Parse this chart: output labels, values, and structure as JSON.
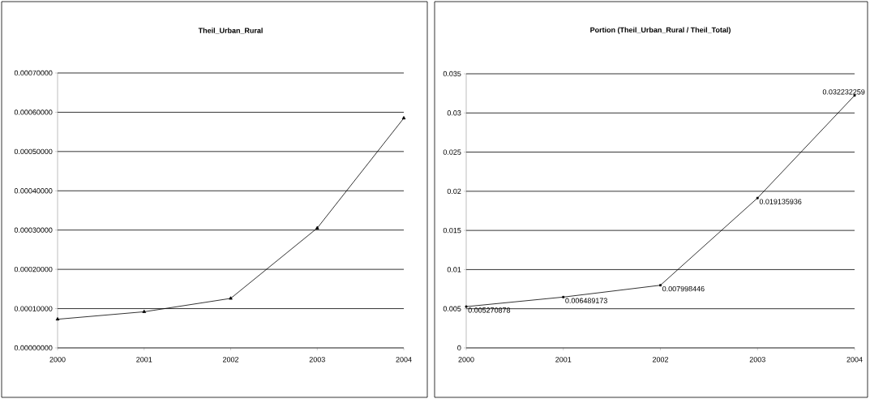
{
  "chart_data": [
    {
      "type": "line",
      "title": "Theil_Urban_Rural",
      "categories": [
        "2000",
        "2001",
        "2002",
        "2003",
        "2004"
      ],
      "values": [
        7.3e-05,
        9.2e-05,
        0.000126,
        0.000305,
        0.000585
      ],
      "color": "#000000",
      "marker": "triangle",
      "grid": "y",
      "ylim": [
        0,
        0.0007
      ],
      "yticks": [
        {
          "value": 0,
          "label": "0.00000000"
        },
        {
          "value": 0.0001,
          "label": "0.00010000"
        },
        {
          "value": 0.0002,
          "label": "0.00020000"
        },
        {
          "value": 0.0003,
          "label": "0.00030000"
        },
        {
          "value": 0.0004,
          "label": "0.00040000"
        },
        {
          "value": 0.0005,
          "label": "0.00050000"
        },
        {
          "value": 0.0006,
          "label": "0.00060000"
        },
        {
          "value": 0.0007,
          "label": "0.00070000"
        }
      ]
    },
    {
      "type": "line",
      "title": "Portion (Theil_Urban_Rural / Theil_Total)",
      "categories": [
        "2000",
        "2001",
        "2002",
        "2003",
        "2004"
      ],
      "values": [
        0.005270878,
        0.006489173,
        0.007998446,
        0.019135936,
        0.032232259
      ],
      "color": "#000000",
      "marker": "square",
      "grid": "y",
      "data_labels": true,
      "ylim": [
        0,
        0.035
      ],
      "yticks": [
        0,
        0.005,
        0.01,
        0.015,
        0.02,
        0.025,
        0.03,
        0.035
      ]
    }
  ]
}
